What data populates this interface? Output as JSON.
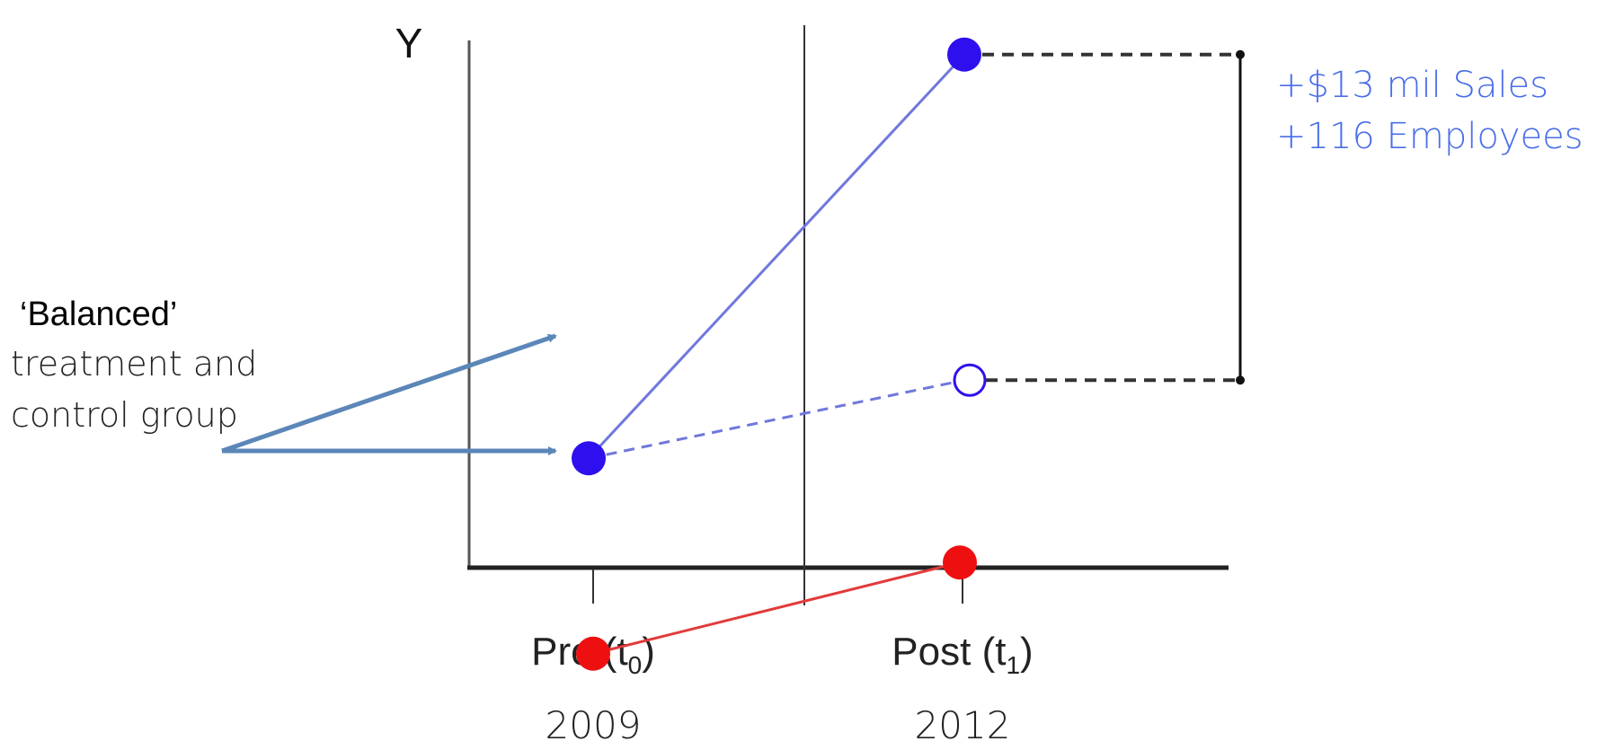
{
  "chart_data": {
    "type": "line",
    "ylabel": "Y",
    "periods": [
      {
        "label": "Pre (t",
        "subscript": "0",
        "label_end": ")",
        "year": "2009"
      },
      {
        "label": "Post (t",
        "subscript": "1",
        "label_end": ")",
        "year": "2012"
      }
    ],
    "series": [
      {
        "role": "treatment",
        "color": "#2e10ee",
        "line_color": "#6f78dc",
        "values": [
          2.95,
          6.05
        ],
        "style": "solid"
      },
      {
        "role": "treatment-counterfactual",
        "color": "#2e10ee",
        "line_color": "#6f78dc",
        "values": [
          2.95,
          3.55
        ],
        "style": "dashed",
        "post_marker": "hollow"
      },
      {
        "role": "control",
        "color": "#ee1010",
        "line_color": "#e23a3a",
        "values": [
          1.45,
          2.15
        ],
        "style": "solid"
      }
    ],
    "effect_annotation": {
      "lines": [
        "+$13 mil Sales",
        "+116 Employees"
      ],
      "color": "#4a6ee8"
    },
    "callout": {
      "title": "‘Balanced’",
      "lines": [
        "treatment and",
        "control group"
      ],
      "arrow_color": "#5b86b8"
    }
  }
}
